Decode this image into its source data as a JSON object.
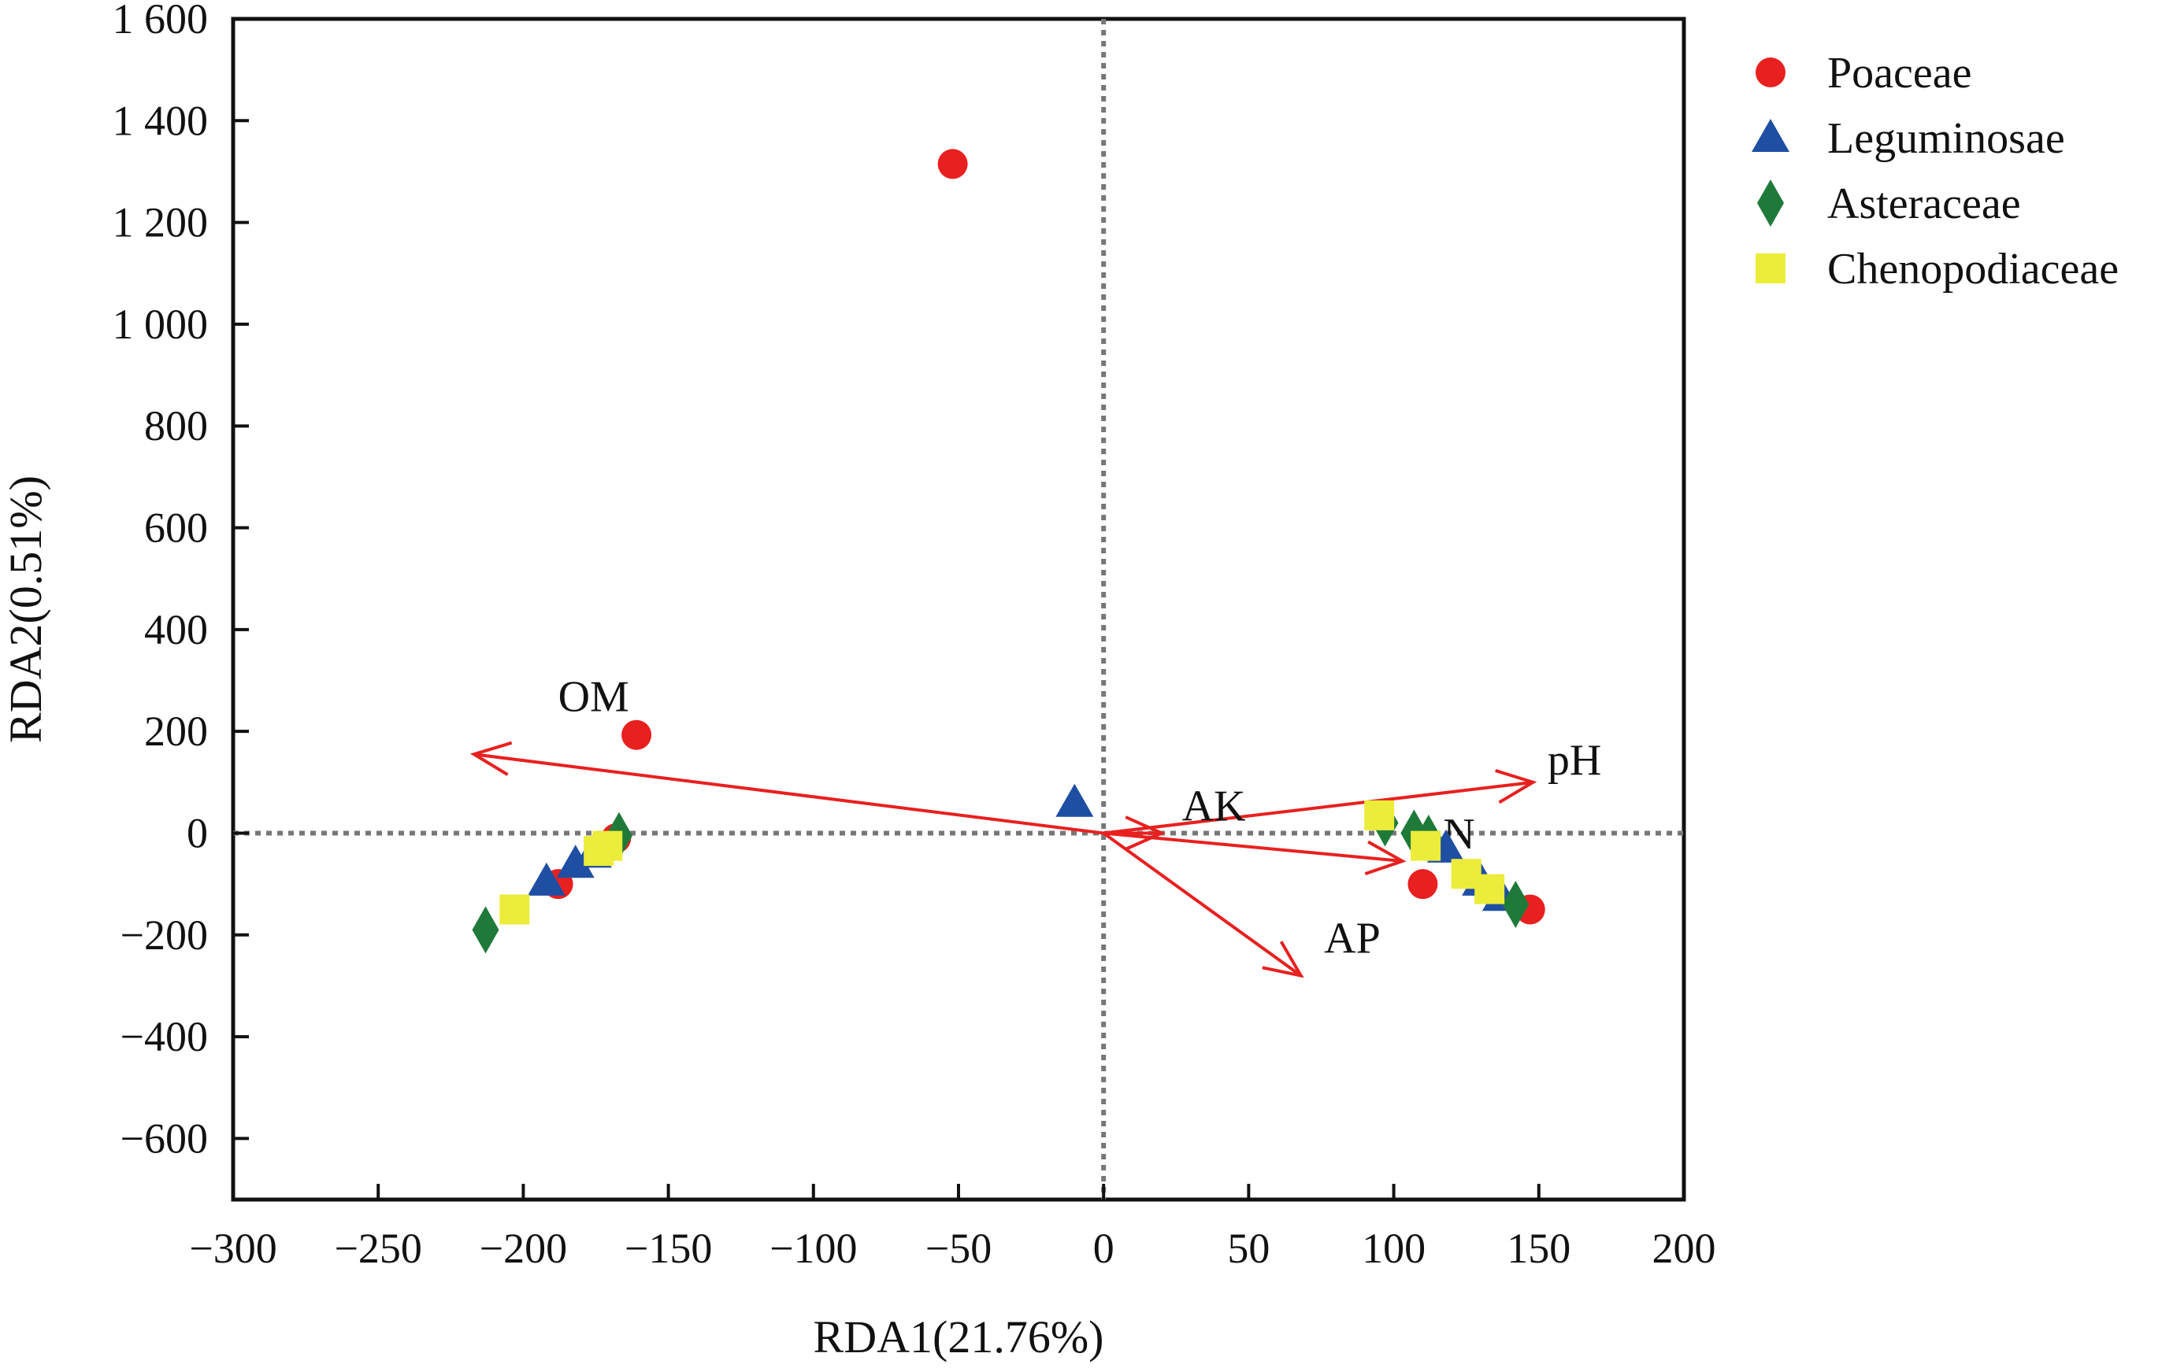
{
  "chart_data": {
    "type": "scatter",
    "title": "",
    "xlabel": "RDA1(21.76%)",
    "ylabel": "RDA2(0.51%)",
    "xlim": [
      -300,
      200
    ],
    "ylim": [
      -720,
      1600
    ],
    "x_ticks": [
      {
        "value": -300,
        "label": "−300"
      },
      {
        "value": -250,
        "label": "−250"
      },
      {
        "value": -200,
        "label": "−200"
      },
      {
        "value": -150,
        "label": "−150"
      },
      {
        "value": -100,
        "label": "−100"
      },
      {
        "value": -50,
        "label": "−50"
      },
      {
        "value": 0,
        "label": "0"
      },
      {
        "value": 50,
        "label": "50"
      },
      {
        "value": 100,
        "label": "100"
      },
      {
        "value": 150,
        "label": "150"
      },
      {
        "value": 200,
        "label": "200"
      }
    ],
    "y_ticks": [
      {
        "value": 1600,
        "label": "1 600"
      },
      {
        "value": 1400,
        "label": "1 400"
      },
      {
        "value": 1200,
        "label": "1 200"
      },
      {
        "value": 1000,
        "label": "1 000"
      },
      {
        "value": 800,
        "label": "800"
      },
      {
        "value": 600,
        "label": "600"
      },
      {
        "value": 400,
        "label": "400"
      },
      {
        "value": 200,
        "label": "200"
      },
      {
        "value": 0,
        "label": "0"
      },
      {
        "value": -200,
        "label": "−200"
      },
      {
        "value": -400,
        "label": "−400"
      },
      {
        "value": -600,
        "label": "−600"
      }
    ],
    "grid": false,
    "legend_position": "outside-top-right",
    "series": [
      {
        "name": "Poaceae",
        "marker": "circle",
        "color": "#e8201f",
        "points": [
          [
            -52,
            1315
          ],
          [
            -161,
            193
          ],
          [
            -168,
            -10
          ],
          [
            -188,
            -100
          ],
          [
            110,
            -100
          ],
          [
            147,
            -150
          ]
        ]
      },
      {
        "name": "Leguminosae",
        "marker": "triangle",
        "color": "#1f4fa3",
        "points": [
          [
            -10,
            60
          ],
          [
            -192,
            -95
          ],
          [
            -182,
            -60
          ],
          [
            -176,
            -40
          ],
          [
            118,
            -30
          ],
          [
            130,
            -95
          ],
          [
            137,
            -125
          ]
        ]
      },
      {
        "name": "Asteraceae",
        "marker": "diamond",
        "color": "#1f7a3a",
        "points": [
          [
            -167,
            -5
          ],
          [
            -213,
            -190
          ],
          [
            97,
            20
          ],
          [
            107,
            0
          ],
          [
            112,
            -10
          ],
          [
            142,
            -140
          ]
        ]
      },
      {
        "name": "Chenopodiaceae",
        "marker": "square",
        "color": "#ecec3a",
        "points": [
          [
            -171,
            -25
          ],
          [
            -174,
            -35
          ],
          [
            -203,
            -150
          ],
          [
            95,
            35
          ],
          [
            111,
            -25
          ],
          [
            125,
            -80
          ],
          [
            133,
            -110
          ]
        ]
      }
    ],
    "vectors": [
      {
        "label": "OM",
        "x": -217,
        "y": 155,
        "label_x": -188,
        "label_y": 240
      },
      {
        "label": "pH",
        "x": 148,
        "y": 100,
        "label_x": 153,
        "label_y": 115
      },
      {
        "label": "AK",
        "x": 20,
        "y": 0,
        "label_x": 27,
        "label_y": 25
      },
      {
        "label": "AP",
        "x": 68,
        "y": -280,
        "label_x": 76,
        "label_y": -235
      },
      {
        "label": "N",
        "x": 103,
        "y": -55,
        "label_x": 117,
        "label_y": -30
      }
    ],
    "vector_color": "#e8201f"
  }
}
